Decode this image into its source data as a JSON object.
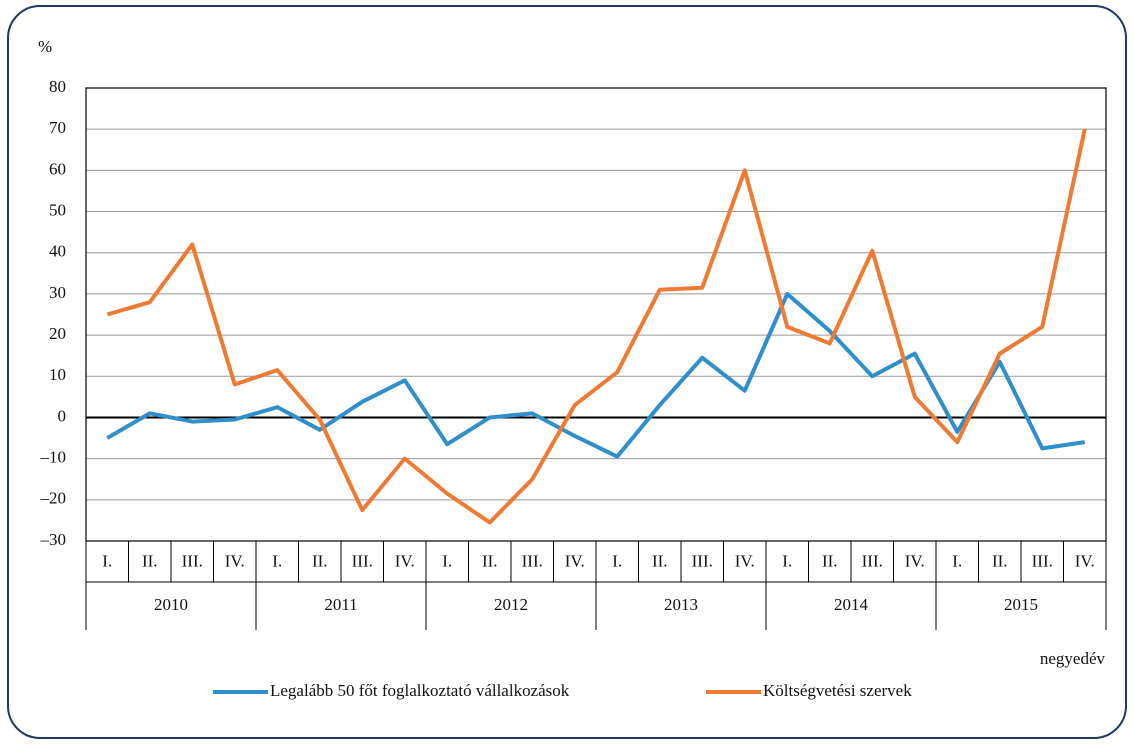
{
  "chart_data": {
    "type": "line",
    "y_unit": "%",
    "x_label": "negyedév",
    "categories": [
      "I.",
      "II.",
      "III.",
      "IV.",
      "I.",
      "II.",
      "III.",
      "IV.",
      "I.",
      "II.",
      "III.",
      "IV.",
      "I.",
      "II.",
      "III.",
      "IV.",
      "I.",
      "II.",
      "III.",
      "IV.",
      "I.",
      "II.",
      "III.",
      "IV."
    ],
    "years": [
      "2010",
      "2011",
      "2012",
      "2013",
      "2014",
      "2015"
    ],
    "series": [
      {
        "name": "Legalább 50 főt foglalkoztató vállalkozások",
        "color": "#2f8fca",
        "values": [
          -5,
          1,
          -1,
          -0.5,
          2.5,
          -3,
          3.8,
          9,
          -6.5,
          0,
          1,
          -4.5,
          -9.5,
          3,
          14.5,
          6.5,
          30,
          21,
          10,
          15.5,
          -3.5,
          13.5,
          -7.5,
          -6
        ]
      },
      {
        "name": "Költségvetési szervek",
        "color": "#ef7a33",
        "values": [
          25,
          28,
          42,
          8,
          11.5,
          -0.5,
          -22.5,
          -10,
          -18.5,
          -25.5,
          -15,
          3,
          11,
          31,
          31.5,
          60,
          22,
          18,
          40.5,
          5,
          -6,
          15.5,
          22,
          70
        ]
      }
    ],
    "ylim": [
      -30,
      80
    ],
    "yticks": [
      {
        "value": -30,
        "label": "–30"
      },
      {
        "value": -20,
        "label": "–20"
      },
      {
        "value": -10,
        "label": "–10"
      },
      0,
      10,
      20,
      30,
      40,
      50,
      60,
      70,
      80
    ],
    "grid": true,
    "legend": "bottom"
  }
}
